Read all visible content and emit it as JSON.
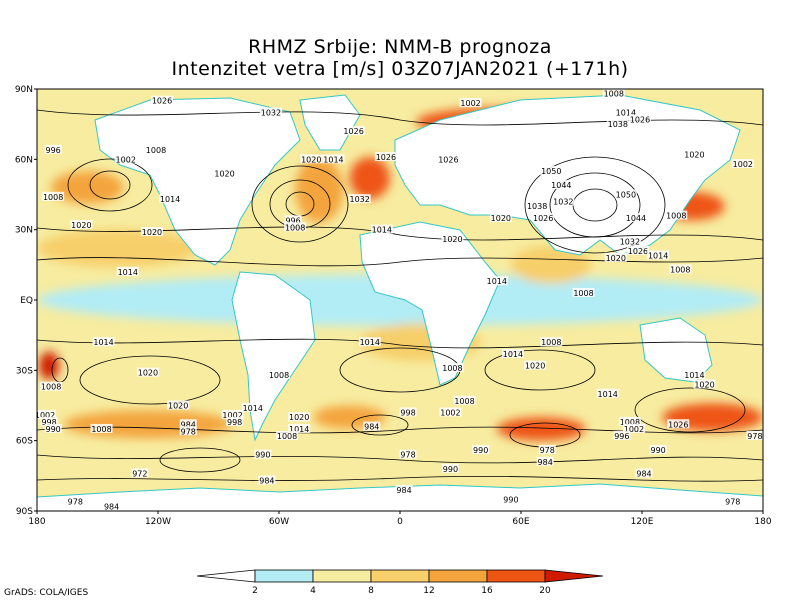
{
  "title": "RHMZ Srbije: NMM-B prognoza",
  "subtitle": "Intenzitet vetra [m/s] 03Z07JAN2021 (+171h)",
  "credit": "GrADS: COLA/IGES",
  "map": {
    "projection": "latlon",
    "lon_range": [
      -180,
      180
    ],
    "lat_range": [
      -90,
      90
    ],
    "lat_ticks": [
      {
        "value": 90,
        "label": "90N"
      },
      {
        "value": 60,
        "label": "60N"
      },
      {
        "value": 30,
        "label": "30N"
      },
      {
        "value": 0,
        "label": "EQ"
      },
      {
        "value": -30,
        "label": "30S"
      },
      {
        "value": -60,
        "label": "60S"
      },
      {
        "value": -90,
        "label": "90S"
      }
    ],
    "lon_ticks": [
      {
        "value": -180,
        "label": "180"
      },
      {
        "value": -120,
        "label": "120W"
      },
      {
        "value": -60,
        "label": "60W"
      },
      {
        "value": 0,
        "label": "0"
      },
      {
        "value": 60,
        "label": "60E"
      },
      {
        "value": 120,
        "label": "120E"
      },
      {
        "value": 180,
        "label": "180"
      }
    ],
    "colors": {
      "land": "#ffffff",
      "coast": "#35c7c7",
      "c0": "#ffffff",
      "c2": "#b2ecf5",
      "c4": "#f7eca0",
      "c8": "#f7cf6b",
      "c12": "#f4a43c",
      "c16": "#ee5512",
      "c20": "#cf1a00",
      "contour": "#000000"
    },
    "wind_zones": [
      {
        "lat": 0,
        "lon": 0,
        "rx": 180,
        "ry": 11,
        "level": "c2"
      },
      {
        "lat": 22,
        "lon": -140,
        "rx": 40,
        "ry": 8,
        "level": "c8"
      },
      {
        "lat": -18,
        "lon": 10,
        "rx": 30,
        "ry": 8,
        "level": "c8"
      },
      {
        "lat": 15,
        "lon": 75,
        "rx": 20,
        "ry": 8,
        "level": "c8"
      },
      {
        "lat": 48,
        "lon": -155,
        "rx": 18,
        "ry": 7,
        "level": "c12"
      },
      {
        "lat": 47,
        "lon": -40,
        "rx": 12,
        "ry": 14,
        "level": "c12"
      },
      {
        "lat": 52,
        "lon": -15,
        "rx": 10,
        "ry": 9,
        "level": "c16"
      },
      {
        "lat": 76,
        "lon": 50,
        "rx": 42,
        "ry": 6,
        "level": "c16"
      },
      {
        "lat": 40,
        "lon": 145,
        "rx": 16,
        "ry": 6,
        "level": "c16"
      },
      {
        "lat": -53,
        "lon": -125,
        "rx": 42,
        "ry": 6,
        "level": "c12"
      },
      {
        "lat": -55,
        "lon": 70,
        "rx": 22,
        "ry": 5,
        "level": "c16"
      },
      {
        "lat": -50,
        "lon": 155,
        "rx": 25,
        "ry": 6,
        "level": "c16"
      },
      {
        "lat": -50,
        "lon": -25,
        "rx": 18,
        "ry": 5,
        "level": "c12"
      },
      {
        "lat": -28,
        "lon": -174,
        "rx": 5,
        "ry": 6,
        "level": "c20"
      }
    ],
    "isobars": [
      {
        "value": "1002",
        "lon": 35,
        "lat": 84
      },
      {
        "value": "1008",
        "lon": 106,
        "lat": 88
      },
      {
        "value": "1026",
        "lon": -118,
        "lat": 85
      },
      {
        "value": "1032",
        "lon": -64,
        "lat": 80
      },
      {
        "value": "1014",
        "lon": 112,
        "lat": 80
      },
      {
        "value": "1026",
        "lon": 119,
        "lat": 77
      },
      {
        "value": "1038",
        "lon": 108,
        "lat": 75
      },
      {
        "value": "1026",
        "lon": -23,
        "lat": 72
      },
      {
        "value": "996",
        "lon": -172,
        "lat": 64
      },
      {
        "value": "1008",
        "lon": -121,
        "lat": 64
      },
      {
        "value": "1002",
        "lon": -136,
        "lat": 60
      },
      {
        "value": "1020",
        "lon": -87,
        "lat": 54
      },
      {
        "value": "1020",
        "lon": -44,
        "lat": 60
      },
      {
        "value": "1014",
        "lon": -33,
        "lat": 60
      },
      {
        "value": "1026",
        "lon": -7,
        "lat": 61
      },
      {
        "value": "1026",
        "lon": 24,
        "lat": 60
      },
      {
        "value": "1008",
        "lon": -172,
        "lat": 44
      },
      {
        "value": "1020",
        "lon": -158,
        "lat": 32
      },
      {
        "value": "1014",
        "lon": -114,
        "lat": 43
      },
      {
        "value": "1032",
        "lon": -20,
        "lat": 43
      },
      {
        "value": "996",
        "lon": -53,
        "lat": 34
      },
      {
        "value": "1008",
        "lon": -52,
        "lat": 31
      },
      {
        "value": "1020",
        "lon": -123,
        "lat": 29
      },
      {
        "value": "1014",
        "lon": -9,
        "lat": 30
      },
      {
        "value": "1020",
        "lon": 26,
        "lat": 26
      },
      {
        "value": "1020",
        "lon": 50,
        "lat": 35
      },
      {
        "value": "1050",
        "lon": 75,
        "lat": 55
      },
      {
        "value": "1044",
        "lon": 80,
        "lat": 49
      },
      {
        "value": "1038",
        "lon": 68,
        "lat": 40
      },
      {
        "value": "1032",
        "lon": 81,
        "lat": 42
      },
      {
        "value": "1026",
        "lon": 71,
        "lat": 35
      },
      {
        "value": "1050",
        "lon": 112,
        "lat": 45
      },
      {
        "value": "1044",
        "lon": 117,
        "lat": 35
      },
      {
        "value": "1032",
        "lon": 114,
        "lat": 25
      },
      {
        "value": "1026",
        "lon": 118,
        "lat": 21
      },
      {
        "value": "1020",
        "lon": 107,
        "lat": 18
      },
      {
        "value": "1008",
        "lon": 137,
        "lat": 36
      },
      {
        "value": "1020",
        "lon": 146,
        "lat": 62
      },
      {
        "value": "1002",
        "lon": 170,
        "lat": 58
      },
      {
        "value": "1014",
        "lon": -135,
        "lat": 12
      },
      {
        "value": "1014",
        "lon": 48,
        "lat": 8
      },
      {
        "value": "1014",
        "lon": 128,
        "lat": 19
      },
      {
        "value": "1008",
        "lon": 139,
        "lat": 13
      },
      {
        "value": "1008",
        "lon": 91,
        "lat": 3
      },
      {
        "value": "1014",
        "lon": -147,
        "lat": -18
      },
      {
        "value": "1014",
        "lon": -15,
        "lat": -18
      },
      {
        "value": "1008",
        "lon": 75,
        "lat": -18
      },
      {
        "value": "1014",
        "lon": 56,
        "lat": -23
      },
      {
        "value": "1020",
        "lon": -125,
        "lat": -31
      },
      {
        "value": "1008",
        "lon": -173,
        "lat": -37
      },
      {
        "value": "1008",
        "lon": -60,
        "lat": -32
      },
      {
        "value": "1008",
        "lon": 26,
        "lat": -29
      },
      {
        "value": "1020",
        "lon": 67,
        "lat": -28
      },
      {
        "value": "1014",
        "lon": 146,
        "lat": -32
      },
      {
        "value": "1020",
        "lon": 151,
        "lat": -36
      },
      {
        "value": "1014",
        "lon": 103,
        "lat": -40
      },
      {
        "value": "1020",
        "lon": -110,
        "lat": -45
      },
      {
        "value": "1014",
        "lon": -73,
        "lat": -46
      },
      {
        "value": "1002",
        "lon": -83,
        "lat": -49
      },
      {
        "value": "1020",
        "lon": -50,
        "lat": -50
      },
      {
        "value": "1014",
        "lon": -50,
        "lat": -55
      },
      {
        "value": "998",
        "lon": 4,
        "lat": -48
      },
      {
        "value": "1002",
        "lon": 25,
        "lat": -48
      },
      {
        "value": "1008",
        "lon": 32,
        "lat": -43
      },
      {
        "value": "1002",
        "lon": -176,
        "lat": -49
      },
      {
        "value": "998",
        "lon": -174,
        "lat": -52
      },
      {
        "value": "990",
        "lon": -172,
        "lat": -55
      },
      {
        "value": "1008",
        "lon": -148,
        "lat": -55
      },
      {
        "value": "984",
        "lon": -105,
        "lat": -53
      },
      {
        "value": "978",
        "lon": -105,
        "lat": -56
      },
      {
        "value": "998",
        "lon": -82,
        "lat": -52
      },
      {
        "value": "984",
        "lon": -14,
        "lat": -54
      },
      {
        "value": "1008",
        "lon": -56,
        "lat": -58
      },
      {
        "value": "1008",
        "lon": 114,
        "lat": -52
      },
      {
        "value": "1002",
        "lon": 116,
        "lat": -55
      },
      {
        "value": "996",
        "lon": 110,
        "lat": -58
      },
      {
        "value": "990",
        "lon": 128,
        "lat": -64
      },
      {
        "value": "1026",
        "lon": 138,
        "lat": -53
      },
      {
        "value": "978",
        "lon": 176,
        "lat": -58
      },
      {
        "value": "990",
        "lon": -68,
        "lat": -66
      },
      {
        "value": "978",
        "lon": 4,
        "lat": -66
      },
      {
        "value": "990",
        "lon": 40,
        "lat": -64
      },
      {
        "value": "978",
        "lon": 73,
        "lat": -64
      },
      {
        "value": "984",
        "lon": 72,
        "lat": -69
      },
      {
        "value": "990",
        "lon": 25,
        "lat": -72
      },
      {
        "value": "984",
        "lon": 121,
        "lat": -74
      },
      {
        "value": "972",
        "lon": -129,
        "lat": -74
      },
      {
        "value": "984",
        "lon": -66,
        "lat": -77
      },
      {
        "value": "984",
        "lon": 2,
        "lat": -81
      },
      {
        "value": "990",
        "lon": 55,
        "lat": -85
      },
      {
        "value": "978",
        "lon": -161,
        "lat": -86
      },
      {
        "value": "984",
        "lon": -143,
        "lat": -88
      },
      {
        "value": "978",
        "lon": 165,
        "lat": -86
      }
    ]
  },
  "colorbar": {
    "ticks": [
      "2",
      "4",
      "8",
      "12",
      "16",
      "20"
    ]
  }
}
